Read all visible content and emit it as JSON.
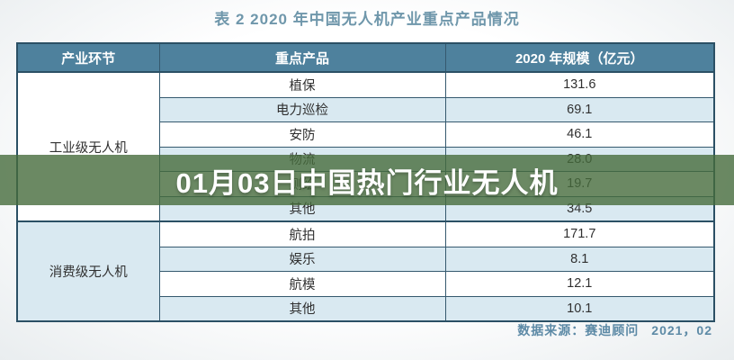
{
  "page": {
    "title": "表 2 2020 年中国无人机产业重点产品情况"
  },
  "table": {
    "headers": [
      "产业环节",
      "重点产品",
      "2020 年规模（亿元）"
    ],
    "sections": [
      {
        "category": "工业级无人机",
        "rows": [
          {
            "product": "植保",
            "scale": "131.6"
          },
          {
            "product": "电力巡检",
            "scale": "69.1"
          },
          {
            "product": "安防",
            "scale": "46.1"
          },
          {
            "product": "物流",
            "scale": "28.0"
          },
          {
            "product": "测绘",
            "scale": "19.7"
          },
          {
            "product": "其他",
            "scale": "34.5"
          }
        ]
      },
      {
        "category": "消费级无人机",
        "rows": [
          {
            "product": "航拍",
            "scale": "171.7"
          },
          {
            "product": "娱乐",
            "scale": "8.1"
          },
          {
            "product": "航模",
            "scale": "12.1"
          },
          {
            "product": "其他",
            "scale": "10.1"
          }
        ]
      }
    ]
  },
  "overlay": {
    "text": "01月03日中国热门行业无人机"
  },
  "footer": {
    "source_label": "数据来源：赛迪顾问",
    "source_date": "2021，02"
  },
  "colors": {
    "title_text": "#6f97ab",
    "header_bg": "#4e819d",
    "header_text": "#ffffff",
    "row_alt_bg": "#d9e9f1",
    "row_bg": "#ffffff",
    "table_border": "#2b5065",
    "cell_text": "#303030",
    "overlay_bg": "rgba(70,108,60,0.8)",
    "overlay_text": "#ffffff",
    "footer_text": "#5d8aa6"
  }
}
